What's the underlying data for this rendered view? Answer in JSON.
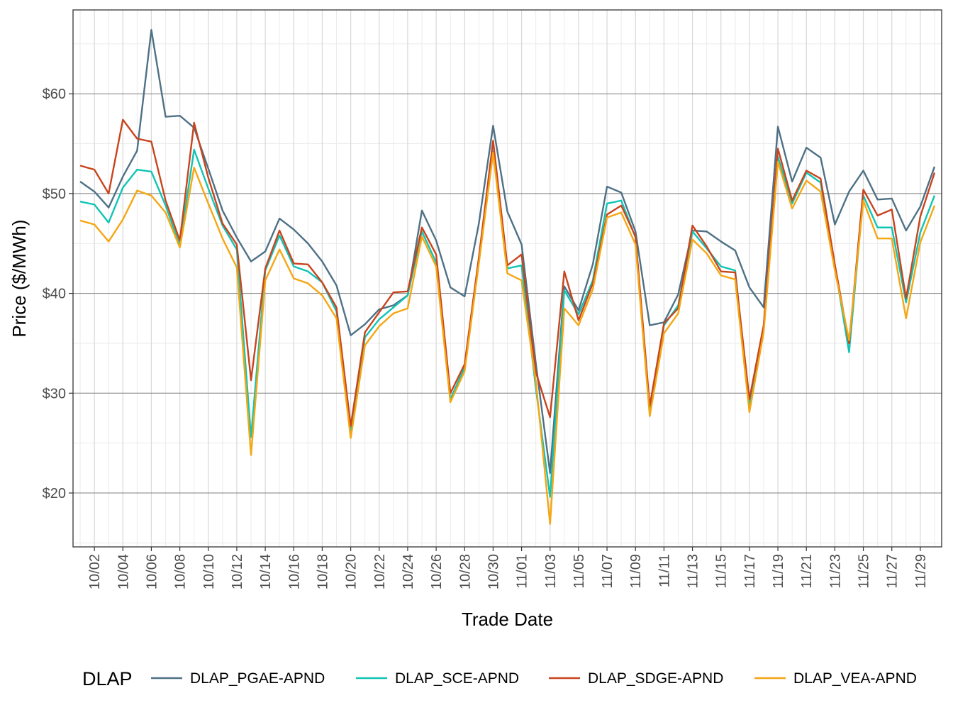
{
  "chart_data": {
    "type": "line",
    "xlabel": "Trade Date",
    "ylabel": "Price ($/MWh)",
    "ylim": [
      14.6,
      68.4
    ],
    "xlim": [
      "2023-09-30T12:00",
      "2023-11-30T12:00"
    ],
    "yticks": [
      20,
      30,
      40,
      50,
      60
    ],
    "ytick_labels": [
      "$20",
      "$30",
      "$40",
      "$50",
      "$60"
    ],
    "xticks": [
      "2023-10-02",
      "2023-10-04",
      "2023-10-06",
      "2023-10-08",
      "2023-10-10",
      "2023-10-12",
      "2023-10-14",
      "2023-10-16",
      "2023-10-18",
      "2023-10-20",
      "2023-10-22",
      "2023-10-24",
      "2023-10-26",
      "2023-10-28",
      "2023-10-30",
      "2023-11-01",
      "2023-11-03",
      "2023-11-05",
      "2023-11-07",
      "2023-11-09",
      "2023-11-11",
      "2023-11-13",
      "2023-11-15",
      "2023-11-17",
      "2023-11-19",
      "2023-11-21",
      "2023-11-23",
      "2023-11-25",
      "2023-11-27",
      "2023-11-29"
    ],
    "xtick_labels": [
      "10/02",
      "10/04",
      "10/06",
      "10/08",
      "10/10",
      "10/12",
      "10/14",
      "10/16",
      "10/18",
      "10/20",
      "10/22",
      "10/24",
      "10/26",
      "10/28",
      "10/30",
      "11/01",
      "11/03",
      "11/05",
      "11/07",
      "11/09",
      "11/11",
      "11/13",
      "11/15",
      "11/17",
      "11/19",
      "11/21",
      "11/23",
      "11/25",
      "11/27",
      "11/29"
    ],
    "grid": true,
    "legend": {
      "title": "DLAP",
      "position": "bottom"
    },
    "dates": [
      "2023-10-01",
      "2023-10-02",
      "2023-10-03",
      "2023-10-04",
      "2023-10-05",
      "2023-10-06",
      "2023-10-07",
      "2023-10-08",
      "2023-10-09",
      "2023-10-10",
      "2023-10-11",
      "2023-10-12",
      "2023-10-13",
      "2023-10-14",
      "2023-10-15",
      "2023-10-16",
      "2023-10-17",
      "2023-10-18",
      "2023-10-19",
      "2023-10-20",
      "2023-10-21",
      "2023-10-22",
      "2023-10-23",
      "2023-10-24",
      "2023-10-25",
      "2023-10-26",
      "2023-10-27",
      "2023-10-28",
      "2023-10-29",
      "2023-10-30",
      "2023-10-31",
      "2023-11-01",
      "2023-11-02",
      "2023-11-03",
      "2023-11-04",
      "2023-11-05",
      "2023-11-06",
      "2023-11-07",
      "2023-11-08",
      "2023-11-09",
      "2023-11-10",
      "2023-11-11",
      "2023-11-12",
      "2023-11-13",
      "2023-11-14",
      "2023-11-15",
      "2023-11-16",
      "2023-11-17",
      "2023-11-18",
      "2023-11-19",
      "2023-11-20",
      "2023-11-21",
      "2023-11-22",
      "2023-11-23",
      "2023-11-24",
      "2023-11-25",
      "2023-11-26",
      "2023-11-27",
      "2023-11-28",
      "2023-11-29",
      "2023-11-30"
    ],
    "series": [
      {
        "name": "DLAP_PGAE-APND",
        "color": "#4e7185",
        "values": [
          51.2,
          50.2,
          48.6,
          51.7,
          54.3,
          66.4,
          57.7,
          57.8,
          56.6,
          52.5,
          48.3,
          45.6,
          43.2,
          44.2,
          47.5,
          46.4,
          45.0,
          43.2,
          40.8,
          35.8,
          36.9,
          38.4,
          38.8,
          39.8,
          48.3,
          45.3,
          40.6,
          39.7,
          47.0,
          56.8,
          48.2,
          44.9,
          33.0,
          22.0,
          40.7,
          38.3,
          42.9,
          50.7,
          50.1,
          46.2,
          36.8,
          37.1,
          39.9,
          46.3,
          46.2,
          45.2,
          44.3,
          40.6,
          38.6,
          56.7,
          51.2,
          54.6,
          53.6,
          46.9,
          50.2,
          52.3,
          49.4,
          49.5,
          46.3,
          48.7,
          52.7
        ]
      },
      {
        "name": "DLAP_SCE-APND",
        "color": "#10c4b4",
        "values": [
          49.2,
          48.9,
          47.1,
          50.6,
          52.4,
          52.2,
          48.8,
          44.8,
          54.4,
          50.5,
          46.8,
          44.4,
          25.6,
          42.3,
          45.8,
          42.7,
          42.2,
          41.1,
          38.2,
          25.9,
          35.6,
          37.4,
          38.6,
          39.8,
          46.2,
          43.1,
          29.4,
          32.6,
          43.5,
          54.2,
          42.5,
          42.8,
          30.5,
          19.6,
          40.3,
          37.9,
          41.3,
          49.0,
          49.3,
          45.6,
          28.4,
          36.8,
          38.8,
          46.2,
          44.5,
          42.7,
          42.3,
          28.8,
          36.6,
          53.7,
          49.0,
          52.1,
          51.1,
          42.7,
          34.1,
          49.8,
          46.6,
          46.6,
          39.1,
          46.1,
          49.8
        ]
      },
      {
        "name": "DLAP_SDGE-APND",
        "color": "#c8441e",
        "values": [
          52.8,
          52.4,
          50.0,
          57.4,
          55.5,
          55.2,
          49.3,
          45.3,
          57.1,
          51.6,
          47.0,
          44.9,
          31.3,
          42.5,
          46.3,
          43.0,
          42.9,
          41.1,
          38.6,
          26.7,
          36.1,
          38.1,
          40.1,
          40.2,
          46.6,
          43.9,
          30.0,
          32.9,
          43.6,
          55.3,
          42.8,
          43.9,
          32.1,
          27.6,
          42.2,
          37.3,
          41.0,
          47.9,
          48.8,
          45.7,
          28.7,
          37.0,
          38.5,
          46.8,
          44.7,
          42.2,
          42.1,
          29.4,
          36.8,
          54.5,
          49.3,
          52.3,
          51.5,
          42.9,
          35.0,
          50.4,
          47.8,
          48.4,
          39.5,
          47.7,
          52.1
        ]
      },
      {
        "name": "DLAP_VEA-APND",
        "color": "#f5a612",
        "values": [
          47.3,
          46.9,
          45.2,
          47.4,
          50.3,
          49.8,
          48.1,
          44.6,
          52.6,
          49.0,
          45.5,
          42.6,
          23.8,
          41.3,
          44.4,
          41.5,
          41.0,
          39.8,
          37.5,
          25.5,
          34.8,
          36.7,
          38.0,
          38.5,
          45.7,
          42.7,
          29.1,
          32.2,
          43.0,
          54.1,
          42.0,
          41.3,
          31.2,
          16.9,
          38.5,
          36.8,
          40.4,
          47.6,
          48.1,
          44.9,
          27.7,
          36.0,
          38.0,
          45.4,
          44.0,
          41.8,
          41.4,
          28.1,
          36.1,
          53.2,
          48.5,
          51.3,
          50.2,
          42.3,
          35.3,
          49.3,
          45.5,
          45.5,
          37.5,
          45.1,
          48.8
        ]
      }
    ]
  }
}
